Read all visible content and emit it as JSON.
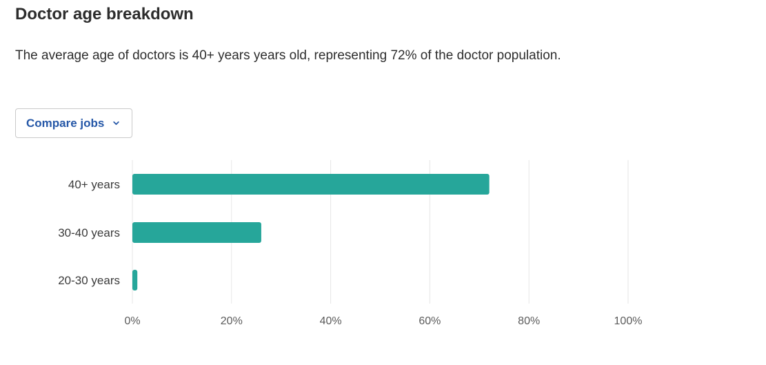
{
  "header": {
    "title": "Doctor age breakdown",
    "description": "The average age of doctors is 40+ years years old, representing 72% of the doctor population."
  },
  "compare": {
    "label": "Compare jobs",
    "icon": "chevron-down-icon"
  },
  "colors": {
    "bar": "#26a69a",
    "grid": "#e6e6e6",
    "accent": "#2557a7"
  },
  "chart_data": {
    "type": "bar",
    "orientation": "horizontal",
    "categories": [
      "40+ years",
      "30-40 years",
      "20-30 years"
    ],
    "values": [
      72,
      26,
      1
    ],
    "xlim": [
      0,
      100
    ],
    "xticks": [
      "0%",
      "20%",
      "40%",
      "60%",
      "80%",
      "100%"
    ],
    "grid": true,
    "unit": "%"
  }
}
